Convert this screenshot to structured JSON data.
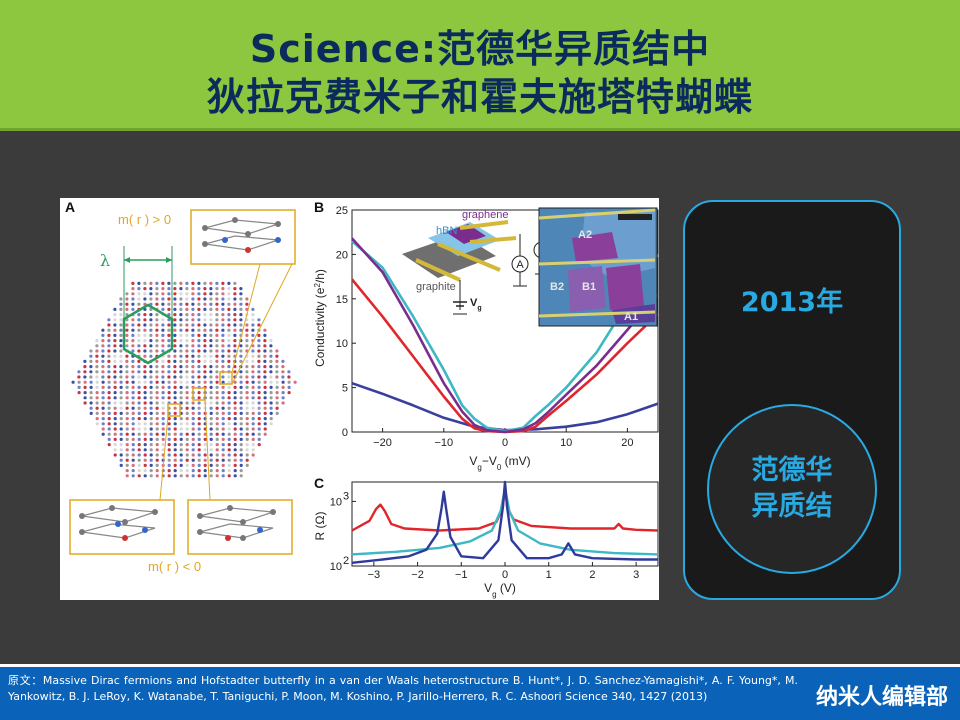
{
  "header": {
    "title_line1": "Science:范德华异质结中",
    "title_line2": "狄拉克费米子和霍夫施塔特蝴蝶",
    "bg_color": "#8dc63f",
    "title_color": "#0b2b5c"
  },
  "figure": {
    "panel_a": {
      "label": "A",
      "top_condition": "m( r ) > 0",
      "bottom_condition": "m( r ) < 0",
      "lambda": "λ"
    },
    "panel_b": {
      "label": "B",
      "inset": {
        "graphene": "graphene",
        "hbn": "hBN",
        "graphite": "graphite",
        "vg": "V",
        "vg_sub": "g",
        "ammeter": "A",
        "voltmeter": "V",
        "photo_labels": [
          "A2",
          "B2",
          "B1",
          "A1"
        ]
      }
    },
    "panel_c": {
      "label": "C"
    }
  },
  "chart_data": [
    {
      "type": "line",
      "title": "",
      "xlabel": "V_g−V_0 (mV)",
      "ylabel": "Conductivity (e²/h)",
      "xlabel_parts": [
        "V",
        "g",
        "−V",
        "0",
        " (mV)"
      ],
      "ylabel_parts": [
        "Conductivity (e",
        "2",
        "/h)"
      ],
      "xlim": [
        -25,
        25
      ],
      "ylim": [
        0,
        25
      ],
      "xticks": [
        -20,
        -10,
        0,
        10,
        20
      ],
      "xtick_labels": [
        "−20",
        "−10",
        "0",
        "10",
        "20"
      ],
      "yticks": [
        0,
        5,
        10,
        15,
        20,
        25
      ],
      "series": [
        {
          "color": "#3a3f9e",
          "x": [
            -25,
            -20,
            -15,
            -10,
            -5,
            0,
            5,
            10,
            15,
            20,
            25
          ],
          "y": [
            5.5,
            4.3,
            3.0,
            1.6,
            0.6,
            0.2,
            0.3,
            0.6,
            1.1,
            2.0,
            3.2
          ]
        },
        {
          "color": "#e0262b",
          "x": [
            -25,
            -20,
            -15,
            -10,
            -7,
            -5,
            -3,
            0,
            3,
            5,
            7,
            10,
            15,
            20,
            25
          ],
          "y": [
            17.2,
            13.0,
            8.5,
            4.0,
            1.5,
            0.4,
            0.1,
            0.0,
            0.1,
            0.6,
            1.8,
            3.5,
            6.5,
            10.0,
            13.3
          ]
        },
        {
          "color": "#3db8c4",
          "x": [
            -25,
            -20,
            -15,
            -10,
            -7,
            -5,
            -3,
            0,
            3,
            5,
            7,
            10,
            15,
            20,
            25
          ],
          "y": [
            21.5,
            18.5,
            13.0,
            7.0,
            3.0,
            1.5,
            0.5,
            0.1,
            0.5,
            1.8,
            3.0,
            5.0,
            9.0,
            14.5,
            20.0
          ]
        },
        {
          "color": "#7b2d8e",
          "x": [
            -25,
            -20,
            -15,
            -10,
            -7,
            -5,
            -3,
            0,
            3,
            5,
            7,
            10,
            15,
            20,
            25
          ],
          "y": [
            21.8,
            18.0,
            12.0,
            5.5,
            2.3,
            0.8,
            0.2,
            0.0,
            0.3,
            1.0,
            2.2,
            4.2,
            7.5,
            11.5,
            15.5
          ]
        }
      ]
    },
    {
      "type": "line",
      "title": "",
      "xlabel": "V_g (V)",
      "ylabel": "R (Ω)",
      "xlabel_parts": [
        "V",
        "g",
        " (V)"
      ],
      "xlim": [
        -3.5,
        3.5
      ],
      "ylim_log10": [
        2,
        3.3
      ],
      "log_scale_y": true,
      "xticks": [
        -3,
        -2,
        -1,
        0,
        1,
        2,
        3
      ],
      "xtick_labels": [
        "−3",
        "−2",
        "−1",
        "0",
        "1",
        "2",
        "3"
      ],
      "ytick_base": "10",
      "yticks_exp": [
        "2",
        "3"
      ],
      "series": [
        {
          "color": "#e0262b",
          "x": [
            -3.5,
            -3.1,
            -2.95,
            -2.85,
            -2.75,
            -2.6,
            -2.3,
            -1.5,
            -0.6,
            -0.2,
            -0.05,
            0.0,
            0.05,
            0.2,
            0.6,
            1.5,
            2.5,
            2.6,
            2.7,
            3.0,
            3.5
          ],
          "y_log10": [
            2.55,
            2.7,
            2.88,
            2.95,
            2.85,
            2.65,
            2.58,
            2.55,
            2.58,
            2.68,
            2.9,
            3.25,
            2.9,
            2.72,
            2.62,
            2.58,
            2.58,
            2.65,
            2.58,
            2.56,
            2.55
          ]
        },
        {
          "color": "#3db8c4",
          "x": [
            -3.5,
            -2.5,
            -1.5,
            -0.8,
            -0.3,
            -0.1,
            0.0,
            0.1,
            0.3,
            0.8,
            1.5,
            2.5,
            3.5
          ],
          "y_log10": [
            2.18,
            2.22,
            2.28,
            2.38,
            2.55,
            2.85,
            3.2,
            2.85,
            2.55,
            2.35,
            2.25,
            2.2,
            2.18
          ]
        },
        {
          "color": "#2f3a9a",
          "x": [
            -3.5,
            -2.8,
            -2.2,
            -1.8,
            -1.55,
            -1.45,
            -1.4,
            -1.35,
            -1.25,
            -1.0,
            -0.5,
            -0.15,
            -0.05,
            0.0,
            0.05,
            0.15,
            0.5,
            1.0,
            1.3,
            1.45,
            1.6,
            2.0,
            3.0,
            3.5
          ],
          "y_log10": [
            2.05,
            2.1,
            2.15,
            2.25,
            2.5,
            2.9,
            3.15,
            2.9,
            2.45,
            2.15,
            2.12,
            2.4,
            2.9,
            3.3,
            2.9,
            2.4,
            2.12,
            2.12,
            2.18,
            2.35,
            2.18,
            2.12,
            2.1,
            2.1
          ]
        }
      ]
    }
  ],
  "right_panel": {
    "year": "2013年",
    "circle_text": "范德华\n异质结",
    "accent_color": "#29a9e1"
  },
  "footer": {
    "citation": "原文：Massive Dirac fermions and Hofstadter butterfly in a van der Waals heterostructure B. Hunt*, J. D. Sanchez-Yamagishi*, A. F. Young*, M. Yankowitz, B. J. LeRoy, K. Watanabe, T. Taniguchi, P. Moon, M. Koshino, P. Jarillo-Herrero, R. C. Ashoori Science 340, 1427 (2013)",
    "brand": "纳米人编辑部",
    "bg_color": "#0a63b8"
  }
}
